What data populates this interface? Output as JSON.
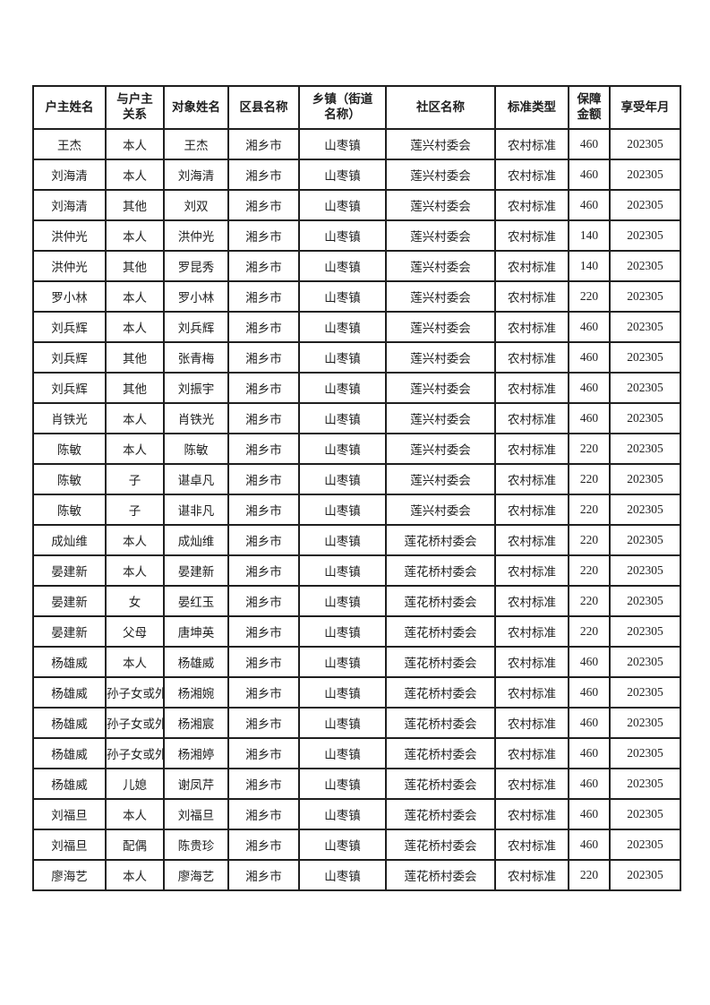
{
  "colors": {
    "background": "#ffffff",
    "border": "#1f1f1f",
    "text": "#1f1f1f"
  },
  "table": {
    "columns": [
      {
        "key": "householder-name",
        "label": "户主姓名"
      },
      {
        "key": "relation",
        "label": "与户主\n关系"
      },
      {
        "key": "subject-name",
        "label": "对象姓名"
      },
      {
        "key": "district-name",
        "label": "区县名称"
      },
      {
        "key": "township-name",
        "label": "乡镇（街道\n名称）"
      },
      {
        "key": "community-name",
        "label": "社区名称"
      },
      {
        "key": "standard-type",
        "label": "标准类型"
      },
      {
        "key": "amount",
        "label": "保障\n金额"
      },
      {
        "key": "benefit-month",
        "label": "享受年月"
      }
    ],
    "rows": [
      [
        "王杰",
        "本人",
        "王杰",
        "湘乡市",
        "山枣镇",
        "莲兴村委会",
        "农村标准",
        "460",
        "202305"
      ],
      [
        "刘海清",
        "本人",
        "刘海清",
        "湘乡市",
        "山枣镇",
        "莲兴村委会",
        "农村标准",
        "460",
        "202305"
      ],
      [
        "刘海清",
        "其他",
        "刘双",
        "湘乡市",
        "山枣镇",
        "莲兴村委会",
        "农村标准",
        "460",
        "202305"
      ],
      [
        "洪仲光",
        "本人",
        "洪仲光",
        "湘乡市",
        "山枣镇",
        "莲兴村委会",
        "农村标准",
        "140",
        "202305"
      ],
      [
        "洪仲光",
        "其他",
        "罗昆秀",
        "湘乡市",
        "山枣镇",
        "莲兴村委会",
        "农村标准",
        "140",
        "202305"
      ],
      [
        "罗小林",
        "本人",
        "罗小林",
        "湘乡市",
        "山枣镇",
        "莲兴村委会",
        "农村标准",
        "220",
        "202305"
      ],
      [
        "刘兵辉",
        "本人",
        "刘兵辉",
        "湘乡市",
        "山枣镇",
        "莲兴村委会",
        "农村标准",
        "460",
        "202305"
      ],
      [
        "刘兵辉",
        "其他",
        "张青梅",
        "湘乡市",
        "山枣镇",
        "莲兴村委会",
        "农村标准",
        "460",
        "202305"
      ],
      [
        "刘兵辉",
        "其他",
        "刘振宇",
        "湘乡市",
        "山枣镇",
        "莲兴村委会",
        "农村标准",
        "460",
        "202305"
      ],
      [
        "肖铁光",
        "本人",
        "肖铁光",
        "湘乡市",
        "山枣镇",
        "莲兴村委会",
        "农村标准",
        "460",
        "202305"
      ],
      [
        "陈敏",
        "本人",
        "陈敏",
        "湘乡市",
        "山枣镇",
        "莲兴村委会",
        "农村标准",
        "220",
        "202305"
      ],
      [
        "陈敏",
        "子",
        "谌卓凡",
        "湘乡市",
        "山枣镇",
        "莲兴村委会",
        "农村标准",
        "220",
        "202305"
      ],
      [
        "陈敏",
        "子",
        "谌非凡",
        "湘乡市",
        "山枣镇",
        "莲兴村委会",
        "农村标准",
        "220",
        "202305"
      ],
      [
        "成灿维",
        "本人",
        "成灿维",
        "湘乡市",
        "山枣镇",
        "莲花桥村委会",
        "农村标准",
        "220",
        "202305"
      ],
      [
        "晏建新",
        "本人",
        "晏建新",
        "湘乡市",
        "山枣镇",
        "莲花桥村委会",
        "农村标准",
        "220",
        "202305"
      ],
      [
        "晏建新",
        "女",
        "晏红玉",
        "湘乡市",
        "山枣镇",
        "莲花桥村委会",
        "农村标准",
        "220",
        "202305"
      ],
      [
        "晏建新",
        "父母",
        "唐坤英",
        "湘乡市",
        "山枣镇",
        "莲花桥村委会",
        "农村标准",
        "220",
        "202305"
      ],
      [
        "杨雄威",
        "本人",
        "杨雄威",
        "湘乡市",
        "山枣镇",
        "莲花桥村委会",
        "农村标准",
        "460",
        "202305"
      ],
      [
        "杨雄威",
        "孙子女或外孙子女",
        "杨湘婉",
        "湘乡市",
        "山枣镇",
        "莲花桥村委会",
        "农村标准",
        "460",
        "202305"
      ],
      [
        "杨雄威",
        "孙子女或外孙子女",
        "杨湘宸",
        "湘乡市",
        "山枣镇",
        "莲花桥村委会",
        "农村标准",
        "460",
        "202305"
      ],
      [
        "杨雄威",
        "孙子女或外孙子女",
        "杨湘婷",
        "湘乡市",
        "山枣镇",
        "莲花桥村委会",
        "农村标准",
        "460",
        "202305"
      ],
      [
        "杨雄威",
        "儿媳",
        "谢凤芹",
        "湘乡市",
        "山枣镇",
        "莲花桥村委会",
        "农村标准",
        "460",
        "202305"
      ],
      [
        "刘福旦",
        "本人",
        "刘福旦",
        "湘乡市",
        "山枣镇",
        "莲花桥村委会",
        "农村标准",
        "460",
        "202305"
      ],
      [
        "刘福旦",
        "配偶",
        "陈贵珍",
        "湘乡市",
        "山枣镇",
        "莲花桥村委会",
        "农村标准",
        "460",
        "202305"
      ],
      [
        "廖海艺",
        "本人",
        "廖海艺",
        "湘乡市",
        "山枣镇",
        "莲花桥村委会",
        "农村标准",
        "220",
        "202305"
      ]
    ]
  }
}
